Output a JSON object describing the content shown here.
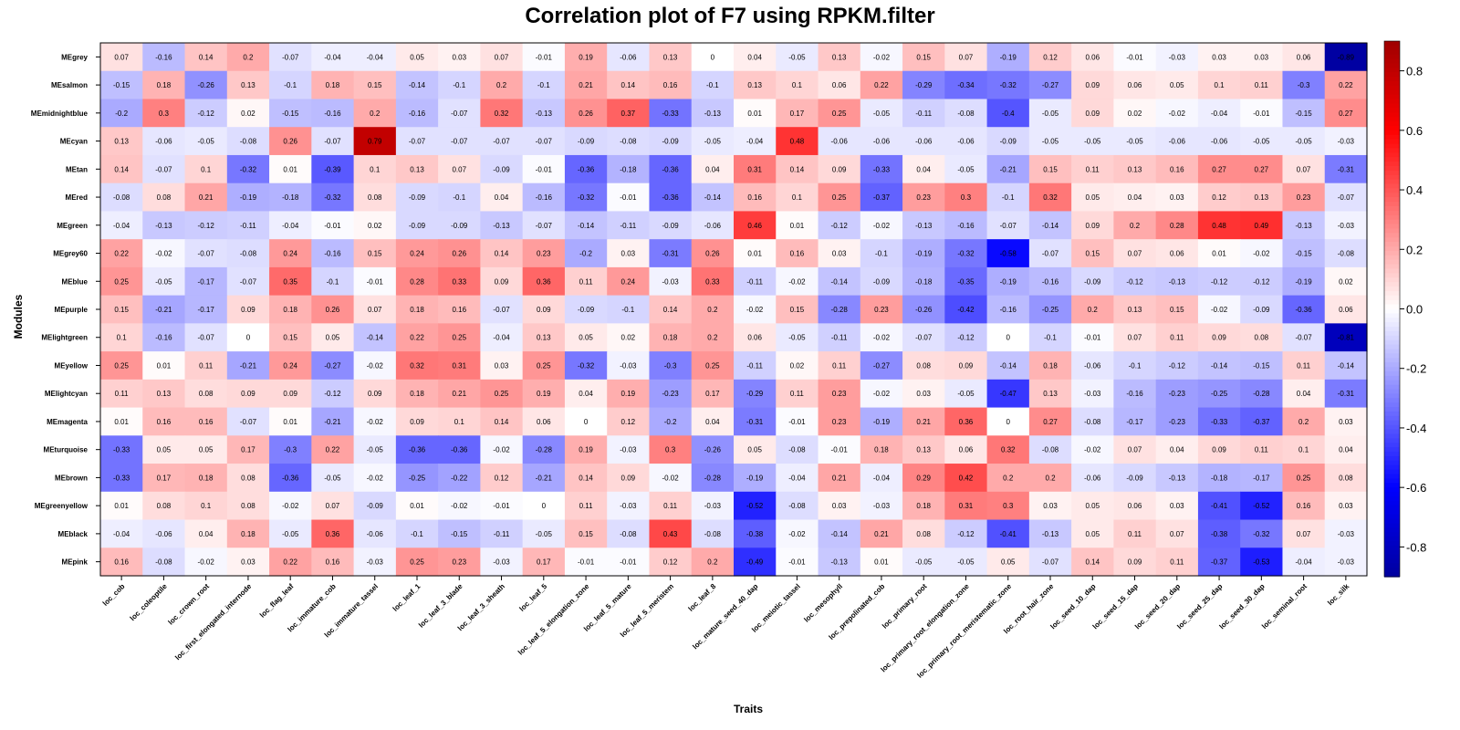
{
  "chart_data": {
    "type": "heatmap",
    "title": "Correlation plot of F7 using RPKM.filter",
    "xlabel": "Traits",
    "ylabel": "Modules",
    "rows": [
      "MEgrey",
      "MEsalmon",
      "MEmidnightblue",
      "MEcyan",
      "MEtan",
      "MEred",
      "MEgreen",
      "MEgrey60",
      "MEblue",
      "MEpurple",
      "MElightgreen",
      "MEyellow",
      "MElightcyan",
      "MEmagenta",
      "MEturquoise",
      "MEbrown",
      "MEgreenyellow",
      "MEblack",
      "MEpink"
    ],
    "cols": [
      "loc_cob",
      "loc_coleoptile",
      "loc_crown_root",
      "loc_first_elongated_internode",
      "loc_flag_leaf",
      "loc_immature_cob",
      "loc_immature_tassel",
      "loc_leaf_1",
      "loc_leaf_3_blade",
      "loc_leaf_3_sheath",
      "loc_leaf_5",
      "loc_leaf_5_elongation_zone",
      "loc_leaf_5_mature",
      "loc_leaf_5_meristem",
      "loc_leaf_8",
      "loc_mature_seed_40_dap",
      "loc_meiotic_tassel",
      "loc_mesophyll",
      "loc_prepolinated_cob",
      "loc_primary_root",
      "loc_primary_root_elongation_zone",
      "loc_primary_root_meristematic_zone",
      "loc_root_hair_zone",
      "loc_seed_10_dap",
      "loc_seed_15_dap",
      "loc_seed_20_dap",
      "loc_seed_25_dap",
      "loc_seed_30_dap",
      "loc_seminal_root",
      "loc_silk"
    ],
    "values": [
      [
        0.07,
        -0.16,
        0.14,
        0.2,
        -0.07,
        -0.04,
        -0.04,
        0.05,
        0.03,
        0.07,
        -0.01,
        0.19,
        -0.06,
        0.13,
        0,
        0.04,
        -0.05,
        0.13,
        -0.02,
        0.15,
        0.07,
        -0.19,
        0.12,
        0.06,
        -0.01,
        -0.03,
        0.03,
        0.03,
        0.06,
        -0.89
      ],
      [
        -0.15,
        0.18,
        -0.26,
        0.13,
        -0.1,
        0.18,
        0.15,
        -0.14,
        -0.1,
        0.2,
        -0.1,
        0.21,
        0.14,
        0.16,
        -0.1,
        0.13,
        0.1,
        0.06,
        0.22,
        -0.29,
        -0.34,
        -0.32,
        -0.27,
        0.09,
        0.06,
        0.05,
        0.1,
        0.11,
        -0.3,
        0.22
      ],
      [
        -0.2,
        0.3,
        -0.12,
        0.02,
        -0.15,
        -0.16,
        0.2,
        -0.16,
        -0.07,
        0.32,
        -0.13,
        0.26,
        0.37,
        -0.33,
        -0.13,
        0.01,
        0.17,
        0.25,
        -0.05,
        -0.11,
        -0.08,
        -0.4,
        -0.05,
        0.09,
        0.02,
        -0.02,
        -0.04,
        -0.01,
        -0.15,
        0.27
      ],
      [
        0.13,
        -0.06,
        -0.05,
        -0.08,
        0.26,
        -0.07,
        0.79,
        -0.07,
        -0.07,
        -0.07,
        -0.07,
        -0.09,
        -0.08,
        -0.09,
        -0.05,
        -0.04,
        0.48,
        -0.06,
        -0.06,
        -0.06,
        -0.06,
        -0.09,
        -0.05,
        -0.05,
        -0.05,
        -0.06,
        -0.06,
        -0.05,
        -0.05,
        -0.03
      ],
      [
        0.14,
        -0.07,
        0.1,
        -0.32,
        0.01,
        -0.39,
        0.1,
        0.13,
        0.07,
        -0.09,
        -0.01,
        -0.36,
        -0.18,
        -0.36,
        0.04,
        0.31,
        0.14,
        0.09,
        -0.33,
        0.04,
        -0.05,
        -0.21,
        0.15,
        0.11,
        0.13,
        0.16,
        0.27,
        0.27,
        0.07,
        -0.31
      ],
      [
        -0.08,
        0.08,
        0.21,
        -0.19,
        -0.18,
        -0.32,
        0.08,
        -0.09,
        -0.1,
        0.04,
        -0.16,
        -0.32,
        -0.01,
        -0.36,
        -0.14,
        0.16,
        0.1,
        0.25,
        -0.37,
        0.23,
        0.3,
        -0.1,
        0.32,
        0.05,
        0.04,
        0.03,
        0.12,
        0.13,
        0.23,
        -0.07
      ],
      [
        -0.04,
        -0.13,
        -0.12,
        -0.11,
        -0.04,
        -0.01,
        0.02,
        -0.09,
        -0.09,
        -0.13,
        -0.07,
        -0.14,
        -0.11,
        -0.09,
        -0.06,
        0.46,
        0.01,
        -0.12,
        -0.02,
        -0.13,
        -0.16,
        -0.07,
        -0.14,
        0.09,
        0.2,
        0.28,
        0.48,
        0.49,
        -0.13,
        -0.03
      ],
      [
        0.22,
        -0.02,
        -0.07,
        -0.08,
        0.24,
        -0.16,
        0.15,
        0.24,
        0.26,
        0.14,
        0.23,
        -0.2,
        0.03,
        -0.31,
        0.26,
        0.01,
        0.16,
        0.03,
        -0.1,
        -0.19,
        -0.32,
        -0.58,
        -0.07,
        0.15,
        0.07,
        0.06,
        0.01,
        -0.02,
        -0.15,
        -0.08
      ],
      [
        0.25,
        -0.05,
        -0.17,
        -0.07,
        0.35,
        -0.1,
        -0.01,
        0.28,
        0.33,
        0.09,
        0.36,
        0.11,
        0.24,
        -0.03,
        0.33,
        -0.11,
        -0.02,
        -0.14,
        -0.09,
        -0.18,
        -0.35,
        -0.19,
        -0.16,
        -0.09,
        -0.12,
        -0.13,
        -0.12,
        -0.12,
        -0.19,
        0.02
      ],
      [
        0.15,
        -0.21,
        -0.17,
        0.09,
        0.18,
        0.26,
        0.07,
        0.18,
        0.16,
        -0.07,
        0.09,
        -0.09,
        -0.1,
        0.14,
        0.2,
        -0.02,
        0.15,
        -0.28,
        0.23,
        -0.26,
        -0.42,
        -0.16,
        -0.25,
        0.2,
        0.13,
        0.15,
        -0.02,
        -0.09,
        -0.36,
        0.06
      ],
      [
        0.1,
        -0.16,
        -0.07,
        0,
        0.15,
        0.05,
        -0.14,
        0.22,
        0.25,
        -0.04,
        0.13,
        0.05,
        0.02,
        0.18,
        0.2,
        0.06,
        -0.05,
        -0.11,
        -0.02,
        -0.07,
        -0.12,
        0,
        -0.1,
        -0.01,
        0.07,
        0.11,
        0.09,
        0.08,
        -0.07,
        -0.81
      ],
      [
        0.25,
        0.01,
        0.11,
        -0.21,
        0.24,
        -0.27,
        -0.02,
        0.32,
        0.31,
        0.03,
        0.25,
        -0.32,
        -0.03,
        -0.3,
        0.25,
        -0.11,
        0.02,
        0.11,
        -0.27,
        0.08,
        0.09,
        -0.14,
        0.18,
        -0.06,
        -0.1,
        -0.12,
        -0.14,
        -0.15,
        0.11,
        -0.14
      ],
      [
        0.11,
        0.13,
        0.08,
        0.09,
        0.09,
        -0.12,
        0.09,
        0.18,
        0.21,
        0.25,
        0.19,
        0.04,
        0.19,
        -0.23,
        0.17,
        -0.29,
        0.11,
        0.23,
        -0.02,
        0.03,
        -0.05,
        -0.47,
        0.13,
        -0.03,
        -0.16,
        -0.23,
        -0.25,
        -0.28,
        0.04,
        -0.31
      ],
      [
        0.01,
        0.16,
        0.16,
        -0.07,
        0.01,
        -0.21,
        -0.02,
        0.09,
        0.1,
        0.14,
        0.06,
        0,
        0.12,
        -0.2,
        0.04,
        -0.31,
        -0.01,
        0.23,
        -0.19,
        0.21,
        0.36,
        0,
        0.27,
        -0.08,
        -0.17,
        -0.23,
        -0.33,
        -0.37,
        0.2,
        0.03
      ],
      [
        -0.33,
        0.05,
        0.05,
        0.17,
        -0.3,
        0.22,
        -0.05,
        -0.36,
        -0.36,
        -0.02,
        -0.28,
        0.19,
        -0.03,
        0.3,
        -0.26,
        0.05,
        -0.08,
        -0.01,
        0.18,
        0.13,
        0.06,
        0.32,
        -0.08,
        -0.02,
        0.07,
        0.04,
        0.09,
        0.11,
        0.1,
        0.04
      ],
      [
        -0.33,
        0.17,
        0.18,
        0.08,
        -0.36,
        -0.05,
        -0.02,
        -0.25,
        -0.22,
        0.12,
        -0.21,
        0.14,
        0.09,
        -0.02,
        -0.28,
        -0.19,
        -0.04,
        0.21,
        -0.04,
        0.29,
        0.42,
        0.2,
        0.2,
        -0.06,
        -0.09,
        -0.13,
        -0.18,
        -0.17,
        0.25,
        0.08
      ],
      [
        0.01,
        0.08,
        0.1,
        0.08,
        -0.02,
        0.07,
        -0.09,
        0.01,
        -0.02,
        -0.01,
        0,
        0.11,
        -0.03,
        0.11,
        -0.03,
        -0.52,
        -0.08,
        0.03,
        -0.03,
        0.18,
        0.31,
        0.3,
        0.03,
        0.05,
        0.06,
        0.03,
        -0.41,
        -0.52,
        0.16,
        0.03
      ],
      [
        -0.04,
        -0.06,
        0.04,
        0.18,
        -0.05,
        0.36,
        -0.06,
        -0.1,
        -0.15,
        -0.11,
        -0.05,
        0.15,
        -0.08,
        0.43,
        -0.08,
        -0.38,
        -0.02,
        -0.14,
        0.21,
        0.08,
        -0.12,
        -0.41,
        -0.13,
        0.05,
        0.11,
        0.07,
        -0.38,
        -0.32,
        0.07,
        -0.03
      ],
      [
        0.16,
        -0.08,
        -0.02,
        0.03,
        0.22,
        0.16,
        -0.03,
        0.25,
        0.23,
        -0.03,
        0.17,
        -0.01,
        -0.01,
        0.12,
        0.2,
        -0.49,
        -0.01,
        -0.13,
        0.01,
        -0.05,
        -0.05,
        0.05,
        -0.07,
        0.14,
        0.09,
        0.11,
        -0.37,
        -0.53,
        -0.04,
        -0.03
      ]
    ],
    "colorbar_ticks": [
      0.8,
      0.6,
      0.4,
      0.2,
      0.0,
      -0.2,
      -0.4,
      -0.6,
      -0.8
    ],
    "colorbar_range": [
      -0.9,
      0.9
    ],
    "colors": {
      "negative_end": "#00007f",
      "negative": "#0000ff",
      "zero": "#ffffff",
      "positive": "#ff0000",
      "positive_end": "#7f0000"
    }
  }
}
